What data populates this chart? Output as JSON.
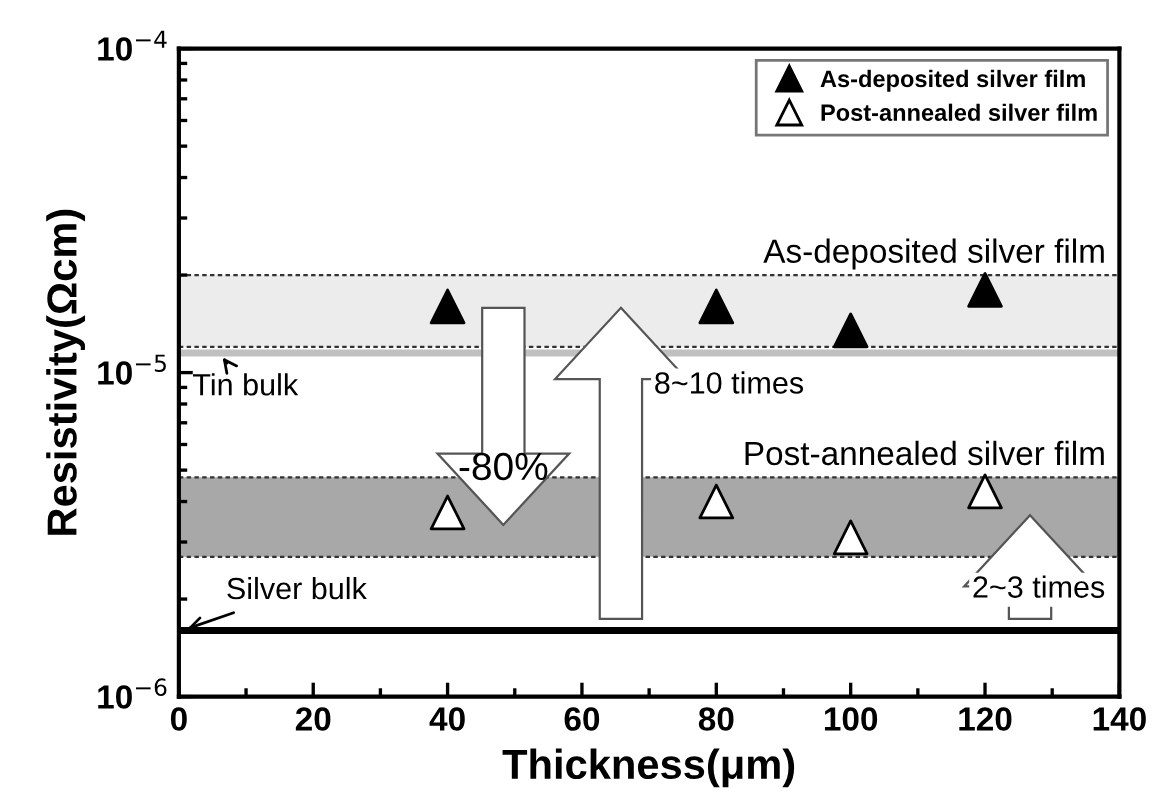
{
  "chart_data": {
    "type": "scatter",
    "xlabel": "Thickness(μm)",
    "ylabel": "Resistivity(Ωcm)",
    "log": "y",
    "marker": "triangle",
    "legend": "top right",
    "grid": false,
    "x": [
      40,
      80,
      100,
      120
    ],
    "series": [
      {
        "name": "As-deposited silver film",
        "color": "#000000",
        "values": [
          1.6e-05,
          1.6e-05,
          1.35e-05,
          1.8e-05
        ]
      },
      {
        "name": "Post-annealed silver film",
        "color": "#ffffff",
        "values": [
          3.7e-06,
          4e-06,
          3.1e-06,
          4.3e-06
        ]
      }
    ],
    "xlim": [
      0,
      140
    ],
    "xticks": [
      0,
      20,
      40,
      60,
      80,
      100,
      120,
      140
    ],
    "ylim": [
      1e-06,
      0.0001
    ],
    "yticks": [
      {
        "value": 1e-06,
        "label": "10$^{−6}$"
      },
      {
        "value": 1e-05,
        "label": "10$^{−5}$"
      },
      {
        "value": 0.0001,
        "label": "10$^{−4}$"
      }
    ],
    "bands": [
      {
        "axis": "y",
        "from": 1.2e-05,
        "to": 2e-05,
        "label": "As-deposited silver film",
        "color": "#ececec"
      },
      {
        "axis": "y",
        "from": 2.7e-06,
        "to": 4.75e-06,
        "label": "Post-annealed silver film",
        "color": "#a8a8a8"
      }
    ],
    "ref_lines": [
      {
        "axis": "y",
        "value": 1.15e-05,
        "label": "Tin bulk",
        "color": "#c0c0c0"
      },
      {
        "axis": "y",
        "value": 1.6e-06,
        "label": "Silver bulk",
        "color": "#000000"
      }
    ],
    "annotations": [
      "-80%",
      "8~10 times",
      "2~3 times"
    ]
  }
}
